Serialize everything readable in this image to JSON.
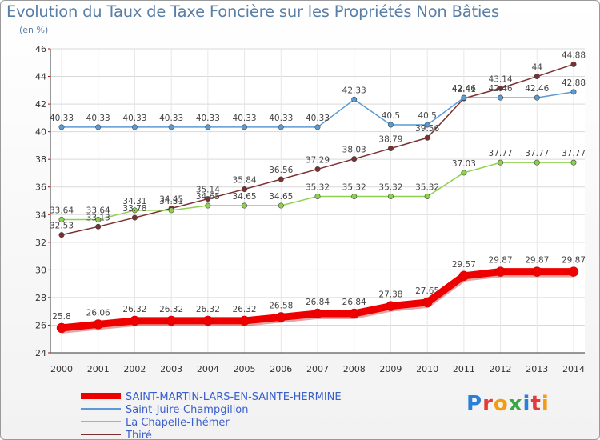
{
  "title": "Evolution du Taux de Taxe Foncière sur les Propriétés Non Bâties",
  "subtitle": "(en %)",
  "logo": "Proxiti",
  "chart_data": {
    "type": "line",
    "title": "Evolution du Taux de Taxe Foncière sur les Propriétés Non Bâties",
    "ylabel": "(en %)",
    "xlabel": "",
    "ylim": [
      24,
      46
    ],
    "yticks": [
      24,
      26,
      28,
      30,
      32,
      34,
      36,
      38,
      40,
      42,
      44,
      46
    ],
    "x": [
      "2000",
      "2001",
      "2002",
      "2003",
      "2004",
      "2005",
      "2006",
      "2007",
      "2008",
      "2009",
      "2010",
      "2011",
      "2012",
      "2013",
      "2014"
    ],
    "grid": true,
    "legend": "bottom-left",
    "series": [
      {
        "name": "SAINT-MARTIN-LARS-EN-SAINTE-HERMINE",
        "color": "#ee0000",
        "values": [
          25.8,
          26.06,
          26.32,
          26.32,
          26.32,
          26.32,
          26.58,
          26.84,
          26.84,
          27.38,
          27.65,
          29.57,
          29.87,
          29.87,
          29.87
        ],
        "labels": [
          "25.8",
          "26.06",
          "26.32",
          "26.32",
          "26.32",
          "26.32",
          "26.58",
          "26.84",
          "26.84",
          "27.38",
          "27.65",
          "29.57",
          "29.87",
          "29.87",
          "29.87"
        ]
      },
      {
        "name": "Saint-Juire-Champgillon",
        "color": "#5b9bd5",
        "values": [
          40.33,
          40.33,
          40.33,
          40.33,
          40.33,
          40.33,
          40.33,
          40.33,
          42.33,
          40.5,
          40.5,
          42.46,
          42.46,
          42.46,
          42.88
        ],
        "labels": [
          "40.33",
          "40.33",
          "40.33",
          "40.33",
          "40.33",
          "40.33",
          "40.33",
          "40.33",
          "42.33",
          "40.5",
          "40.5",
          "42.46",
          "42.46",
          "42.46",
          "42.88"
        ]
      },
      {
        "name": "La Chapelle-Thémer",
        "color": "#8fd14f",
        "values": [
          33.64,
          33.64,
          34.31,
          34.31,
          34.65,
          34.65,
          34.65,
          35.32,
          35.32,
          35.32,
          35.32,
          37.03,
          37.77,
          37.77,
          37.77
        ],
        "labels": [
          "33.64",
          "33.64",
          "34.31",
          "34.31",
          "34.65",
          "34.65",
          "34.65",
          "35.32",
          "35.32",
          "35.32",
          "35.32",
          "37.03",
          "37.77",
          "37.77",
          "37.77"
        ]
      },
      {
        "name": "Thiré",
        "color": "#7a3030",
        "values": [
          32.53,
          33.13,
          33.78,
          34.45,
          35.14,
          35.84,
          36.56,
          37.29,
          38.03,
          38.79,
          39.56,
          42.41,
          43.14,
          44,
          44.88
        ],
        "labels": [
          "32.53",
          "33.13",
          "33.78",
          "34.45",
          "35.14",
          "35.84",
          "36.56",
          "37.29",
          "38.03",
          "38.79",
          "39.56",
          "42.41",
          "43.14",
          "44",
          "44.88"
        ]
      }
    ]
  }
}
